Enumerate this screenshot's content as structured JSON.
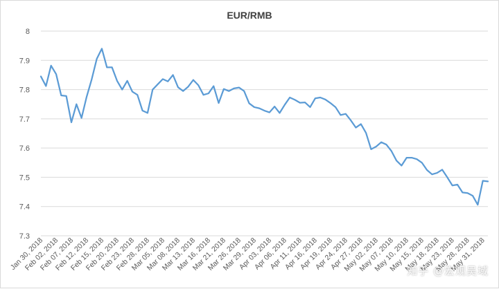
{
  "chart_data": {
    "type": "line",
    "title": "EUR/RMB",
    "xlabel": "",
    "ylabel": "",
    "ylim": [
      7.3,
      8.0
    ],
    "yticks": [
      "8",
      "7.9",
      "7.8",
      "7.7",
      "7.6",
      "7.5",
      "7.4",
      "7.3"
    ],
    "x_tick_labels": [
      "Jan 30, 2018",
      "Feb 02, 2018",
      "Feb 07, 2018",
      "Feb 12, 2018",
      "Feb 15, 2018",
      "Feb 20, 2018",
      "Feb 23, 2018",
      "Feb 28, 2018",
      "Mar 05, 2018",
      "Mar 08, 2018",
      "Mar 13, 2018",
      "Mar 16, 2018",
      "Mar 21, 2018",
      "Mar 26, 2018",
      "Mar 29, 2018",
      "Apr 03, 2018",
      "Apr 06, 2018",
      "Apr 11, 2018",
      "Apr 16, 2018",
      "Apr 19, 2018",
      "Apr 24, 2018",
      "Apr 27, 2018",
      "May 02, 2018",
      "May 07, 2018",
      "May 10, 2018",
      "May 15, 2018",
      "May 18, 2018",
      "May 23, 2018",
      "May 28, 2018",
      "May 31, 2018"
    ],
    "grid": true,
    "legend": "none",
    "series": [
      {
        "color": "#5b9bd5",
        "values": [
          7.845,
          7.812,
          7.882,
          7.853,
          7.78,
          7.778,
          7.688,
          7.75,
          7.703,
          7.775,
          7.835,
          7.905,
          7.94,
          7.876,
          7.876,
          7.83,
          7.8,
          7.83,
          7.793,
          7.782,
          7.728,
          7.72,
          7.8,
          7.818,
          7.836,
          7.828,
          7.85,
          7.808,
          7.795,
          7.81,
          7.833,
          7.815,
          7.782,
          7.787,
          7.812,
          7.754,
          7.802,
          7.795,
          7.804,
          7.807,
          7.795,
          7.753,
          7.74,
          7.736,
          7.728,
          7.722,
          7.742,
          7.72,
          7.748,
          7.773,
          7.765,
          7.755,
          7.756,
          7.74,
          7.77,
          7.773,
          7.766,
          7.754,
          7.74,
          7.713,
          7.717,
          7.695,
          7.67,
          7.682,
          7.652,
          7.596,
          7.605,
          7.62,
          7.612,
          7.59,
          7.557,
          7.54,
          7.567,
          7.567,
          7.562,
          7.55,
          7.525,
          7.51,
          7.515,
          7.526,
          7.5,
          7.472,
          7.475,
          7.448,
          7.446,
          7.437,
          7.406,
          7.488,
          7.486
        ]
      }
    ]
  },
  "watermark": "知乎 @宏观吴域"
}
